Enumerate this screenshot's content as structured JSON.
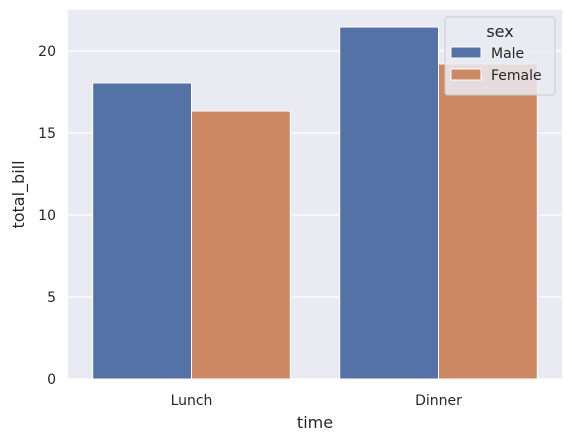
{
  "chart_data": {
    "type": "bar",
    "title": "",
    "xlabel": "time",
    "ylabel": "total_bill",
    "categories": [
      "Lunch",
      "Dinner"
    ],
    "series": [
      {
        "name": "Male",
        "values": [
          18.05,
          21.46
        ]
      },
      {
        "name": "Female",
        "values": [
          16.34,
          19.21
        ]
      }
    ],
    "ylim": [
      0,
      22.5
    ],
    "yticks": [
      0,
      5,
      10,
      15,
      20
    ],
    "grid": true,
    "legend": {
      "title": "sex",
      "placement": "top-right"
    },
    "colors": {
      "Male": "#5572a6",
      "Female": "#cc8963",
      "background": "#eaeaf2",
      "grid": "#ffffff"
    }
  }
}
